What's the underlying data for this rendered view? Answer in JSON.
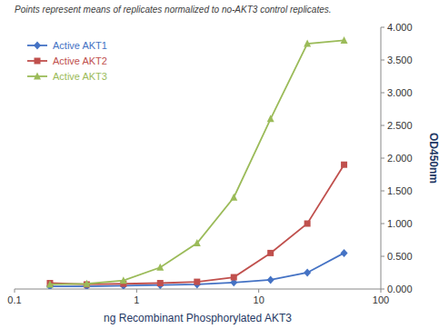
{
  "chart_data": {
    "type": "line",
    "xlabel": "ng Recombinant  Phosphorylated  AKT3",
    "ylabel": "OD450nm",
    "annotation": "Points represent means of replicates normalized to no-AKT3 control replicates.",
    "x": [
      0.195,
      0.39,
      0.78,
      1.56,
      3.125,
      6.25,
      12.5,
      25,
      50
    ],
    "series": [
      {
        "name": "Active AKT1",
        "color": "#4472C4",
        "marker": "diamond",
        "values": [
          0.04,
          0.04,
          0.05,
          0.06,
          0.07,
          0.1,
          0.14,
          0.25,
          0.55
        ]
      },
      {
        "name": "Active AKT2",
        "color": "#C0504D",
        "marker": "square",
        "values": [
          0.09,
          0.07,
          0.08,
          0.09,
          0.11,
          0.18,
          0.55,
          1.0,
          1.9
        ]
      },
      {
        "name": "Active AKT3",
        "color": "#9BBB59",
        "marker": "triangle",
        "values": [
          0.07,
          0.08,
          0.13,
          0.33,
          0.7,
          1.4,
          2.6,
          3.75,
          3.8
        ]
      }
    ],
    "log": "x",
    "xlim": [
      0.1,
      100
    ],
    "xticks": [
      0.1,
      1,
      10,
      100
    ],
    "ylim": [
      0.0,
      4.0
    ],
    "yticks": [
      {
        "value": 0.0,
        "label": "0.000"
      },
      {
        "value": 0.5,
        "label": "0.500"
      },
      {
        "value": 1.0,
        "label": "1.000"
      },
      {
        "value": 1.5,
        "label": "1.500"
      },
      {
        "value": 2.0,
        "label": "2.000"
      },
      {
        "value": 2.5,
        "label": "2.500"
      },
      {
        "value": 3.0,
        "label": "3.000"
      },
      {
        "value": 3.5,
        "label": "3.500"
      },
      {
        "value": 4.0,
        "label": "4.000"
      }
    ],
    "grid": false,
    "legend": "upper left"
  }
}
